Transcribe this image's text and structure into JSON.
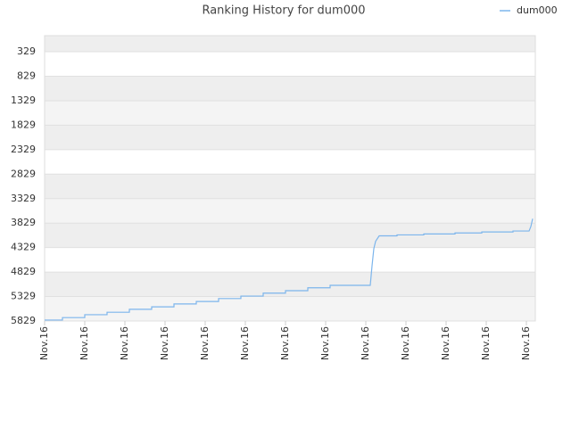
{
  "chart_data": {
    "type": "line",
    "title": "Ranking History for dum000",
    "x": [
      0,
      4,
      4,
      9,
      9,
      14,
      14,
      19,
      19,
      24,
      24,
      29,
      29,
      34,
      34,
      39,
      39,
      44,
      44,
      49,
      49,
      54,
      54,
      59,
      59,
      64,
      64,
      69,
      69,
      73,
      73.4,
      73.8,
      74.2,
      75,
      79,
      79,
      85,
      85,
      92,
      92,
      98,
      98,
      105,
      105,
      108.6,
      109,
      109.4
    ],
    "series": [
      {
        "name": "dum000",
        "color": "#7cb5ec",
        "values": [
          5810,
          5810,
          5760,
          5760,
          5700,
          5700,
          5650,
          5650,
          5590,
          5590,
          5540,
          5540,
          5480,
          5480,
          5430,
          5430,
          5370,
          5370,
          5320,
          5320,
          5260,
          5260,
          5210,
          5210,
          5150,
          5150,
          5100,
          5100,
          5100,
          5100,
          4700,
          4350,
          4200,
          4090,
          4090,
          4070,
          4070,
          4050,
          4050,
          4030,
          4030,
          4010,
          4010,
          3990,
          3990,
          3900,
          3740
        ]
      }
    ],
    "xlim": [
      0,
      110
    ],
    "xticks": [
      {
        "value": 0,
        "label": "Nov.16"
      },
      {
        "value": 9,
        "label": "Nov.16"
      },
      {
        "value": 18,
        "label": "Nov.16"
      },
      {
        "value": 27,
        "label": "Nov.16"
      },
      {
        "value": 36,
        "label": "Nov.16"
      },
      {
        "value": 45,
        "label": "Nov.16"
      },
      {
        "value": 54,
        "label": "Nov.16"
      },
      {
        "value": 63,
        "label": "Nov.16"
      },
      {
        "value": 72,
        "label": "Nov.16"
      },
      {
        "value": 81,
        "label": "Nov.16"
      },
      {
        "value": 90,
        "label": "Nov.16"
      },
      {
        "value": 99,
        "label": "Nov.16"
      },
      {
        "value": 108,
        "label": "Nov.16"
      }
    ],
    "ylim": [
      5829,
      0
    ],
    "yticks": [
      329,
      829,
      1329,
      1829,
      2329,
      2829,
      3329,
      3829,
      4329,
      4829,
      5329,
      5829
    ],
    "grid": true,
    "legend": "top-right"
  }
}
